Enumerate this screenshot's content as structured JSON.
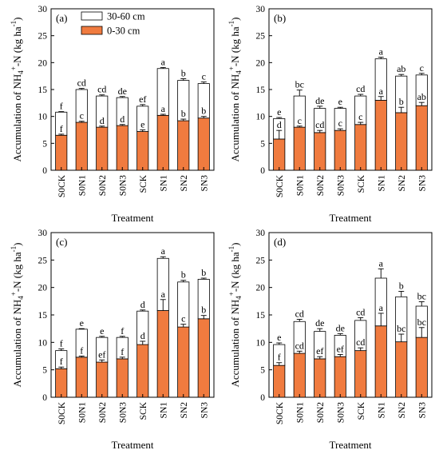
{
  "legend": {
    "upper": "30-60 cm",
    "lower": "0-30 cm"
  },
  "colors": {
    "lower": "#f07b3f",
    "upper": "#ffffff",
    "stroke": "#000000"
  },
  "chart_data": [
    {
      "type": "bar",
      "stacked": true,
      "panel": "(a)",
      "categories": [
        "S0CK",
        "S0N1",
        "S0N2",
        "S0N3",
        "SCK",
        "SN1",
        "SN2",
        "SN3"
      ],
      "ylabel": "Accumulation of NH4+-N (kg ha-1)",
      "xlabel": "Treatment",
      "ylim": [
        0,
        30
      ],
      "yticks": [
        0,
        5,
        10,
        15,
        20,
        25,
        30
      ],
      "series": [
        {
          "name": "0-30 cm",
          "values": [
            6.5,
            8.9,
            8.0,
            8.3,
            7.2,
            10.2,
            9.2,
            9.7
          ],
          "errors": [
            0.2,
            0.2,
            0.2,
            0.2,
            0.3,
            0.2,
            0.3,
            0.3
          ],
          "letters": [
            "f",
            "c",
            "d",
            "d",
            "e",
            "a",
            "b",
            "b"
          ]
        },
        {
          "name": "30-60 cm",
          "values": [
            4.3,
            6.1,
            5.8,
            5.2,
            4.7,
            8.7,
            7.5,
            6.4
          ],
          "totals": [
            10.8,
            15.0,
            13.8,
            13.5,
            11.9,
            18.9,
            16.7,
            16.1
          ],
          "errors": [
            0.1,
            0.2,
            0.2,
            0.2,
            0.3,
            0.2,
            0.3,
            0.3
          ],
          "letters": [
            "f",
            "cd",
            "cd",
            "de",
            "ef",
            "a",
            "b",
            "c"
          ]
        }
      ]
    },
    {
      "type": "bar",
      "stacked": true,
      "panel": "(b)",
      "categories": [
        "S0CK",
        "S0N1",
        "S0N2",
        "S0N3",
        "SCK",
        "SN1",
        "SN2",
        "SN3"
      ],
      "ylabel": "Accumulation of NH4+-N (kg ha-1)",
      "xlabel": "Treatment",
      "ylim": [
        0,
        30
      ],
      "yticks": [
        0,
        5,
        10,
        15,
        20,
        25,
        30
      ],
      "series": [
        {
          "name": "0-30 cm",
          "values": [
            5.8,
            8.0,
            7.0,
            7.4,
            8.5,
            13.0,
            10.7,
            12.0
          ],
          "errors": [
            1.6,
            0.2,
            0.4,
            0.3,
            0.4,
            0.7,
            1.0,
            0.6
          ],
          "letters": [
            "d",
            "c",
            "cd",
            "c",
            "c",
            "a",
            "b",
            "ab"
          ]
        },
        {
          "name": "30-60 cm",
          "values": [
            3.8,
            5.8,
            4.5,
            4.1,
            5.3,
            7.7,
            6.8,
            5.7
          ],
          "totals": [
            9.6,
            13.8,
            11.5,
            11.5,
            13.8,
            20.7,
            17.5,
            17.7
          ],
          "errors": [
            0.2,
            1.1,
            0.4,
            0.2,
            0.3,
            0.3,
            0.3,
            0.3
          ],
          "letters": [
            "e",
            "bc",
            "de",
            "e",
            "cd",
            "a",
            "ab",
            "c"
          ]
        }
      ]
    },
    {
      "type": "bar",
      "stacked": true,
      "panel": "(c)",
      "categories": [
        "S0CK",
        "S0N1",
        "S0N2",
        "S0N3",
        "SCK",
        "SN1",
        "SN2",
        "SN3"
      ],
      "ylabel": "Accumulation of NH4+-N (kg ha-1)",
      "xlabel": "Treatment",
      "ylim": [
        0,
        30
      ],
      "yticks": [
        0,
        5,
        10,
        15,
        20,
        25,
        30
      ],
      "series": [
        {
          "name": "0-30 cm",
          "values": [
            5.2,
            7.3,
            6.4,
            7.0,
            9.6,
            15.8,
            12.8,
            14.3
          ],
          "errors": [
            0.3,
            0.2,
            0.4,
            0.3,
            0.6,
            2.0,
            0.5,
            0.6
          ],
          "letters": [
            "f",
            "f",
            "ef",
            "f",
            "d",
            "a",
            "c",
            "b"
          ]
        },
        {
          "name": "30-60 cm",
          "values": [
            3.3,
            5.1,
            4.5,
            3.9,
            6.1,
            9.5,
            8.2,
            7.2
          ],
          "totals": [
            8.5,
            12.4,
            10.9,
            10.9,
            15.7,
            25.3,
            21.0,
            21.5
          ],
          "errors": [
            0.3,
            0.1,
            0.2,
            0.2,
            0.2,
            0.3,
            0.3,
            0.2
          ],
          "letters": [
            "f",
            "e",
            "e",
            "f",
            "d",
            "a",
            "b",
            "b"
          ]
        }
      ]
    },
    {
      "type": "bar",
      "stacked": true,
      "panel": "(d)",
      "categories": [
        "S0CK",
        "S0N1",
        "S0N2",
        "S0N3",
        "SCK",
        "SN1",
        "SN2",
        "SN3"
      ],
      "ylabel": "Accumulation of NH4+-N (kg ha-1)",
      "xlabel": "Treatment",
      "ylim": [
        0,
        30
      ],
      "yticks": [
        0,
        5,
        10,
        15,
        20,
        25,
        30
      ],
      "series": [
        {
          "name": "0-30 cm",
          "values": [
            5.8,
            8.0,
            7.0,
            7.4,
            8.5,
            13.0,
            10.1,
            10.9
          ],
          "errors": [
            0.5,
            0.4,
            0.4,
            0.4,
            0.5,
            2.3,
            1.4,
            1.8
          ],
          "letters": [
            "f",
            "cd",
            "ef",
            "ef",
            "cd",
            "a",
            "bc",
            "bc"
          ]
        },
        {
          "name": "30-60 cm",
          "values": [
            3.8,
            5.8,
            5.0,
            3.9,
            5.5,
            8.7,
            8.2,
            5.7
          ],
          "totals": [
            9.6,
            13.8,
            12.0,
            11.3,
            14.0,
            21.7,
            18.3,
            16.6
          ],
          "errors": [
            0.3,
            0.4,
            0.5,
            0.3,
            0.5,
            1.7,
            1.0,
            0.8
          ],
          "letters": [
            "e",
            "cd",
            "de",
            "de",
            "cd",
            "a",
            "b",
            "bc"
          ]
        }
      ]
    }
  ]
}
